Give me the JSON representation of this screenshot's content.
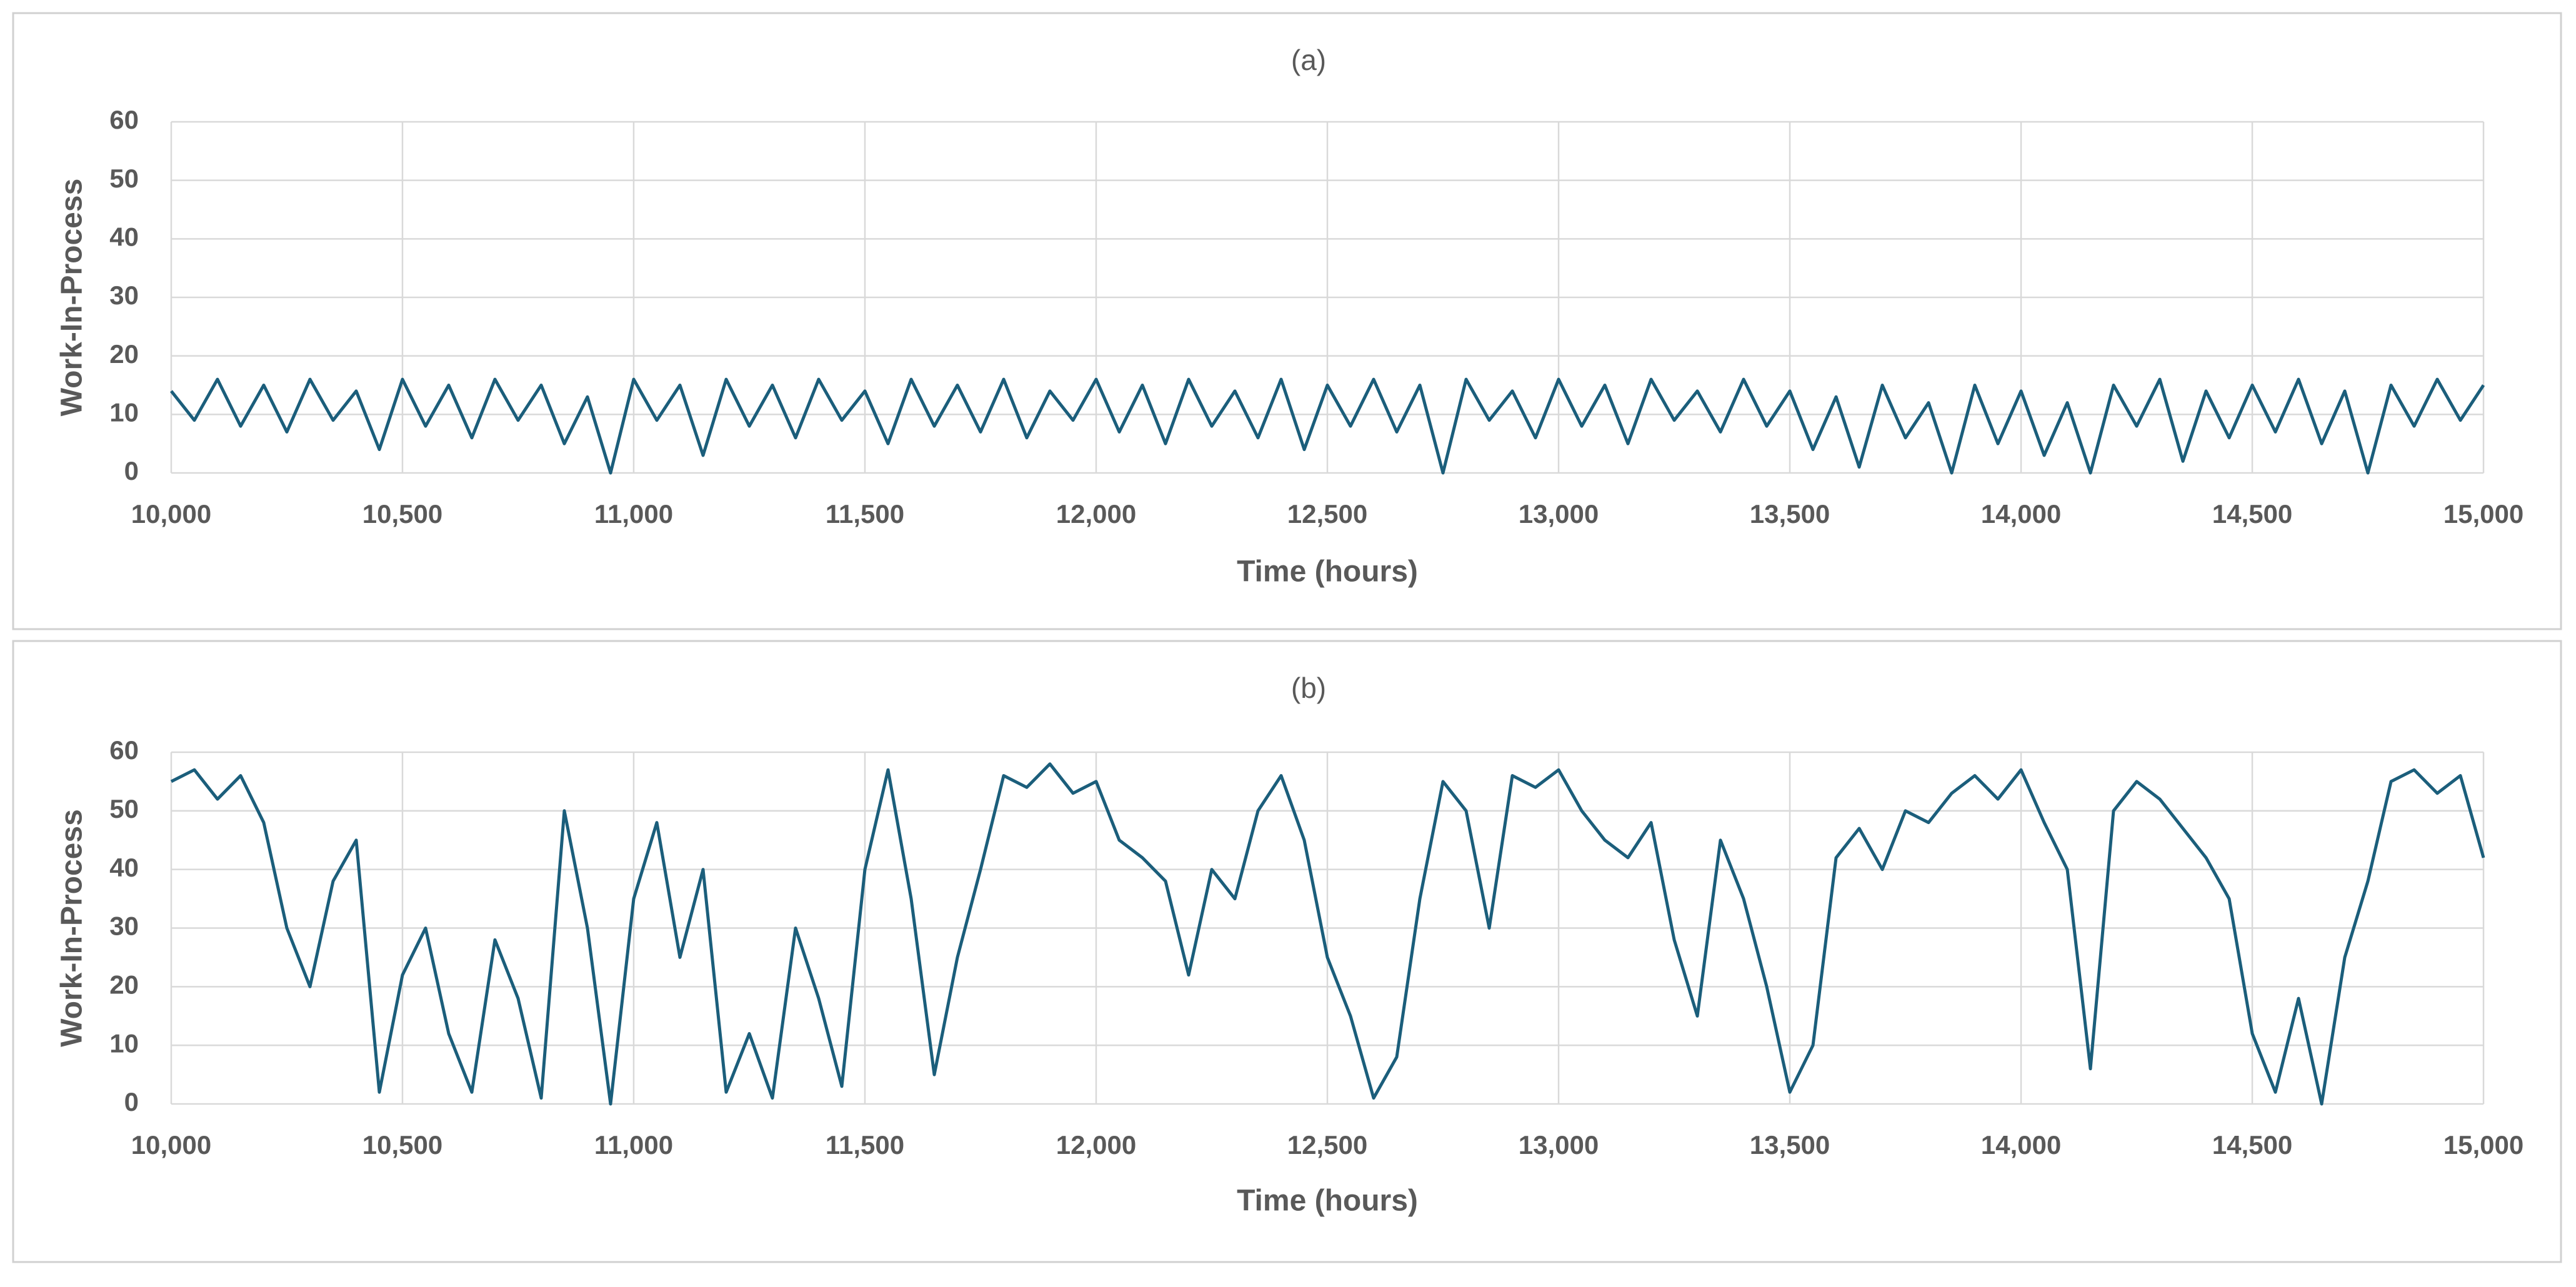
{
  "chart_data": [
    {
      "type": "line",
      "title": "(a)",
      "x_label": "Time (hours)",
      "y_label": "Work-In-Process",
      "grid": true,
      "xlim": [
        10000,
        15000
      ],
      "ylim": [
        0,
        60
      ],
      "xticks": [
        {
          "value": 10000,
          "label": "10,000"
        },
        {
          "value": 10500,
          "label": "10,500"
        },
        {
          "value": 11000,
          "label": "11,000"
        },
        {
          "value": 11500,
          "label": "11,500"
        },
        {
          "value": 12000,
          "label": "12,000"
        },
        {
          "value": 12500,
          "label": "12,500"
        },
        {
          "value": 13000,
          "label": "13,000"
        },
        {
          "value": 13500,
          "label": "13,500"
        },
        {
          "value": 14000,
          "label": "14,000"
        },
        {
          "value": 14500,
          "label": "14,500"
        },
        {
          "value": 15000,
          "label": "15,000"
        }
      ],
      "yticks": [
        0,
        10,
        20,
        30,
        40,
        50,
        60
      ],
      "x": [
        10000,
        10050,
        10100,
        10150,
        10200,
        10250,
        10300,
        10350,
        10400,
        10450,
        10500,
        10550,
        10600,
        10650,
        10700,
        10750,
        10800,
        10850,
        10900,
        10950,
        11000,
        11050,
        11100,
        11150,
        11200,
        11250,
        11300,
        11350,
        11400,
        11450,
        11500,
        11550,
        11600,
        11650,
        11700,
        11750,
        11800,
        11850,
        11900,
        11950,
        12000,
        12050,
        12100,
        12150,
        12200,
        12250,
        12300,
        12350,
        12400,
        12450,
        12500,
        12550,
        12600,
        12650,
        12700,
        12750,
        12800,
        12850,
        12900,
        12950,
        13000,
        13050,
        13100,
        13150,
        13200,
        13250,
        13300,
        13350,
        13400,
        13450,
        13500,
        13550,
        13600,
        13650,
        13700,
        13750,
        13800,
        13850,
        13900,
        13950,
        14000,
        14050,
        14100,
        14150,
        14200,
        14250,
        14300,
        14350,
        14400,
        14450,
        14500,
        14550,
        14600,
        14650,
        14700,
        14750,
        14800,
        14850,
        14900,
        14950,
        15000
      ],
      "series": [
        {
          "color": "#1b5e7b",
          "values": [
            14,
            9,
            16,
            8,
            15,
            7,
            16,
            9,
            14,
            4,
            16,
            8,
            15,
            6,
            16,
            9,
            15,
            5,
            13,
            0,
            16,
            9,
            15,
            3,
            16,
            8,
            15,
            6,
            16,
            9,
            14,
            5,
            16,
            8,
            15,
            7,
            16,
            6,
            14,
            9,
            16,
            7,
            15,
            5,
            16,
            8,
            14,
            6,
            16,
            4,
            15,
            8,
            16,
            7,
            15,
            0,
            16,
            9,
            14,
            6,
            16,
            8,
            15,
            5,
            16,
            9,
            14,
            7,
            16,
            8,
            14,
            4,
            13,
            1,
            15,
            6,
            12,
            0,
            15,
            5,
            14,
            3,
            12,
            0,
            15,
            8,
            16,
            2,
            14,
            6,
            15,
            7,
            16,
            5,
            14,
            0,
            15,
            8,
            16,
            9,
            15
          ]
        }
      ]
    },
    {
      "type": "line",
      "title": "(b)",
      "x_label": "Time (hours)",
      "y_label": "Work-In-Process",
      "grid": true,
      "xlim": [
        10000,
        15000
      ],
      "ylim": [
        0,
        60
      ],
      "xticks": [
        {
          "value": 10000,
          "label": "10,000"
        },
        {
          "value": 10500,
          "label": "10,500"
        },
        {
          "value": 11000,
          "label": "11,000"
        },
        {
          "value": 11500,
          "label": "11,500"
        },
        {
          "value": 12000,
          "label": "12,000"
        },
        {
          "value": 12500,
          "label": "12,500"
        },
        {
          "value": 13000,
          "label": "13,000"
        },
        {
          "value": 13500,
          "label": "13,500"
        },
        {
          "value": 14000,
          "label": "14,000"
        },
        {
          "value": 14500,
          "label": "14,500"
        },
        {
          "value": 15000,
          "label": "15,000"
        }
      ],
      "yticks": [
        0,
        10,
        20,
        30,
        40,
        50,
        60
      ],
      "x": [
        10000,
        10050,
        10100,
        10150,
        10200,
        10250,
        10300,
        10350,
        10400,
        10450,
        10500,
        10550,
        10600,
        10650,
        10700,
        10750,
        10800,
        10850,
        10900,
        10950,
        11000,
        11050,
        11100,
        11150,
        11200,
        11250,
        11300,
        11350,
        11400,
        11450,
        11500,
        11550,
        11600,
        11650,
        11700,
        11750,
        11800,
        11850,
        11900,
        11950,
        12000,
        12050,
        12100,
        12150,
        12200,
        12250,
        12300,
        12350,
        12400,
        12450,
        12500,
        12550,
        12600,
        12650,
        12700,
        12750,
        12800,
        12850,
        12900,
        12950,
        13000,
        13050,
        13100,
        13150,
        13200,
        13250,
        13300,
        13350,
        13400,
        13450,
        13500,
        13550,
        13600,
        13650,
        13700,
        13750,
        13800,
        13850,
        13900,
        13950,
        14000,
        14050,
        14100,
        14150,
        14200,
        14250,
        14300,
        14350,
        14400,
        14450,
        14500,
        14550,
        14600,
        14650,
        14700,
        14750,
        14800,
        14850,
        14900,
        14950,
        15000
      ],
      "series": [
        {
          "color": "#1b5e7b",
          "values": [
            55,
            57,
            52,
            56,
            48,
            30,
            20,
            38,
            45,
            2,
            22,
            30,
            12,
            2,
            28,
            18,
            1,
            50,
            30,
            0,
            35,
            48,
            25,
            40,
            2,
            12,
            1,
            30,
            18,
            3,
            40,
            57,
            35,
            5,
            25,
            40,
            56,
            54,
            58,
            53,
            55,
            45,
            42,
            38,
            22,
            40,
            35,
            50,
            56,
            45,
            25,
            15,
            1,
            8,
            35,
            55,
            50,
            30,
            56,
            54,
            57,
            50,
            45,
            42,
            48,
            28,
            15,
            45,
            35,
            20,
            2,
            10,
            42,
            47,
            40,
            50,
            48,
            53,
            56,
            52,
            57,
            48,
            40,
            6,
            50,
            55,
            52,
            47,
            42,
            35,
            12,
            2,
            18,
            0,
            25,
            38,
            55,
            57,
            53,
            56,
            42
          ]
        }
      ]
    }
  ]
}
